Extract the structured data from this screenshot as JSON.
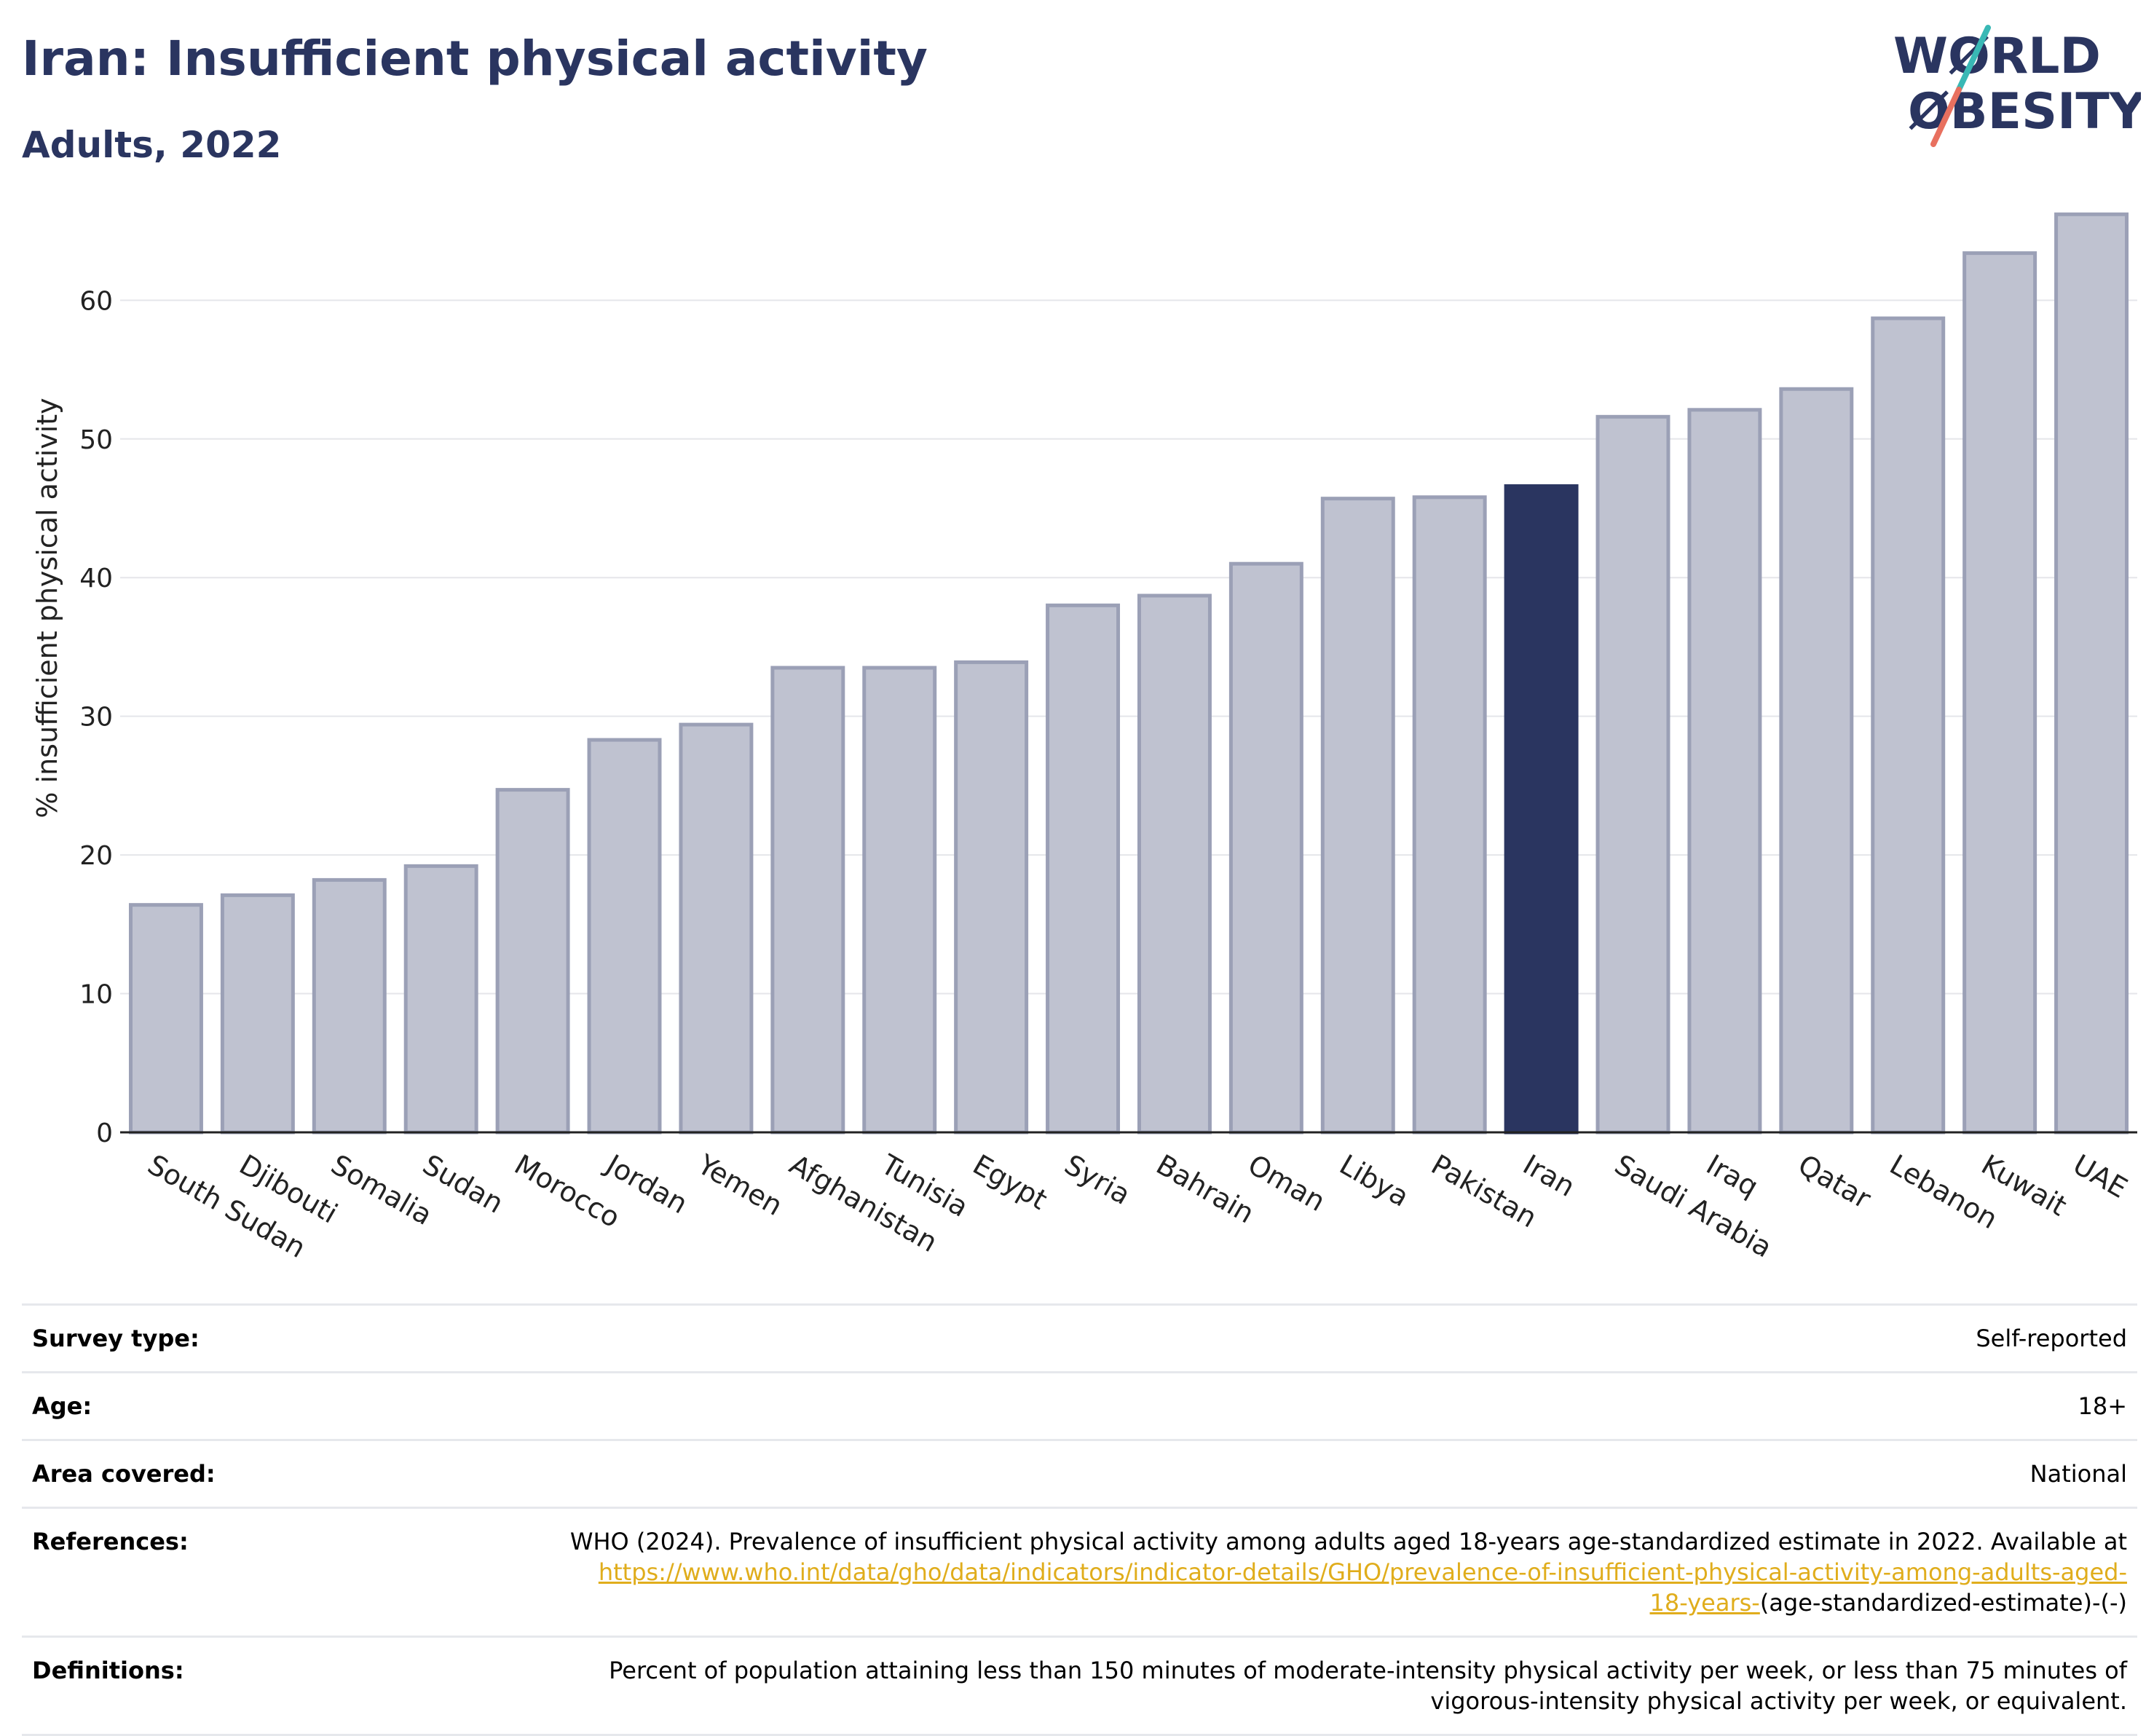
{
  "header": {
    "title": "Iran: Insufficient physical activity",
    "subtitle": "Adults, 2022"
  },
  "logo": {
    "line1": "WØRLD",
    "line2": "ØBESITY",
    "text_color": "#2a3560",
    "slash_color_top": "#39b8b5",
    "slash_color_bottom": "#e8705f"
  },
  "chart_data": {
    "type": "bar",
    "ylabel": "% insufficient physical activity",
    "ylim": [
      0,
      68
    ],
    "yticks": [
      0,
      10,
      20,
      30,
      40,
      50,
      60
    ],
    "grid": true,
    "highlight": "Iran",
    "colors": {
      "bar": "#bfc2d0",
      "bar_outline": "#9ba0b6",
      "highlight": "#2a3560"
    },
    "categories": [
      "South Sudan",
      "Djibouti",
      "Somalia",
      "Sudan",
      "Morocco",
      "Jordan",
      "Yemen",
      "Afghanistan",
      "Tunisia",
      "Egypt",
      "Syria",
      "Bahrain",
      "Oman",
      "Libya",
      "Pakistan",
      "Iran",
      "Saudi Arabia",
      "Iraq",
      "Qatar",
      "Lebanon",
      "Kuwait",
      "UAE"
    ],
    "values": [
      16.4,
      17.1,
      18.2,
      19.2,
      24.7,
      28.3,
      29.4,
      33.5,
      33.5,
      33.9,
      38.0,
      38.7,
      41.0,
      45.7,
      45.8,
      46.6,
      51.6,
      52.1,
      53.6,
      58.7,
      63.4,
      66.2
    ]
  },
  "info": {
    "rows": [
      {
        "label": "Survey type:",
        "value": "Self-reported"
      },
      {
        "label": "Age:",
        "value": "18+"
      },
      {
        "label": "Area covered:",
        "value": "National"
      }
    ],
    "references": {
      "label": "References:",
      "text": "WHO (2024). Prevalence of insufficient physical activity among adults aged 18-years age-standardized estimate in 2022. Available at",
      "link_part1": "https://www.who.int/data/gho/data/indicators/indicator-details/GHO/prevalence-of-insufficient-physical-activity-among-adults-aged-",
      "link_part2": "18-years-",
      "suffix": "(age-standardized-estimate)-(-)"
    },
    "definitions": {
      "label": "Definitions:",
      "line1": "Percent of population attaining less than 150 minutes of moderate-intensity physical activity per week, or less than 75 minutes of",
      "line2": "vigorous-intensity physical activity per week, or equivalent."
    }
  }
}
